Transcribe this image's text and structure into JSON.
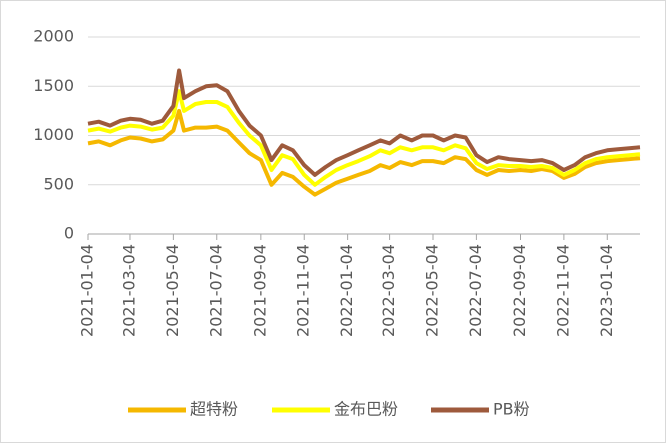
{
  "chart_data": {
    "type": "line",
    "x": [
      "2021-01-04",
      "2021-01-19",
      "2021-02-04",
      "2021-02-19",
      "2021-03-04",
      "2021-03-19",
      "2021-04-04",
      "2021-04-19",
      "2021-05-04",
      "2021-05-12",
      "2021-05-19",
      "2021-06-04",
      "2021-06-19",
      "2021-07-04",
      "2021-07-19",
      "2021-08-04",
      "2021-08-19",
      "2021-09-04",
      "2021-09-19",
      "2021-10-04",
      "2021-10-19",
      "2021-11-04",
      "2021-11-19",
      "2021-12-04",
      "2021-12-19",
      "2022-01-04",
      "2022-01-19",
      "2022-02-04",
      "2022-02-19",
      "2022-03-04",
      "2022-03-19",
      "2022-04-04",
      "2022-04-19",
      "2022-05-04",
      "2022-05-19",
      "2022-06-04",
      "2022-06-19",
      "2022-07-04",
      "2022-07-19",
      "2022-08-04",
      "2022-08-19",
      "2022-09-04",
      "2022-09-19",
      "2022-10-04",
      "2022-10-19",
      "2022-11-04",
      "2022-11-19",
      "2022-12-04",
      "2022-12-19",
      "2023-01-04",
      "2023-01-19",
      "2023-02-04",
      "2023-02-19"
    ],
    "series": [
      {
        "name": "超特粉",
        "color": "#f5b800",
        "values": [
          920,
          940,
          900,
          950,
          980,
          970,
          940,
          960,
          1050,
          1250,
          1050,
          1080,
          1080,
          1090,
          1050,
          930,
          820,
          750,
          500,
          620,
          580,
          480,
          400,
          460,
          520,
          560,
          600,
          640,
          700,
          670,
          730,
          700,
          740,
          740,
          720,
          780,
          760,
          650,
          600,
          650,
          640,
          650,
          640,
          660,
          640,
          570,
          610,
          680,
          720,
          740,
          750,
          760,
          770
        ]
      },
      {
        "name": "金布巴粉",
        "color": "#ffff00",
        "values": [
          1050,
          1070,
          1040,
          1080,
          1100,
          1090,
          1060,
          1080,
          1200,
          1450,
          1250,
          1320,
          1340,
          1340,
          1290,
          1130,
          1000,
          900,
          650,
          800,
          760,
          600,
          500,
          580,
          650,
          700,
          740,
          790,
          850,
          820,
          880,
          850,
          880,
          880,
          850,
          900,
          870,
          720,
          660,
          700,
          690,
          690,
          680,
          690,
          670,
          600,
          650,
          720,
          760,
          780,
          790,
          800,
          810
        ]
      },
      {
        "name": "PB粉",
        "color": "#9e5a3c",
        "values": [
          1120,
          1140,
          1100,
          1150,
          1170,
          1160,
          1120,
          1150,
          1300,
          1660,
          1380,
          1450,
          1500,
          1510,
          1450,
          1250,
          1100,
          1000,
          750,
          900,
          850,
          700,
          600,
          680,
          750,
          800,
          850,
          900,
          950,
          920,
          1000,
          950,
          1000,
          1000,
          950,
          1000,
          980,
          800,
          730,
          780,
          760,
          750,
          740,
          750,
          720,
          650,
          700,
          780,
          820,
          850,
          860,
          870,
          880
        ]
      }
    ],
    "xlim": [
      "2021-01-04",
      "2023-02-19"
    ],
    "xticks": [
      "2021-01-04",
      "2021-03-04",
      "2021-05-04",
      "2021-07-04",
      "2021-09-04",
      "2021-11-04",
      "2022-01-04",
      "2022-03-04",
      "2022-05-04",
      "2022-07-04",
      "2022-09-04",
      "2022-11-04",
      "2023-01-04"
    ],
    "ylim": [
      0,
      2000
    ],
    "yticks": [
      0,
      500,
      1000,
      1500,
      2000
    ],
    "grid": true,
    "legend": "bottom"
  }
}
